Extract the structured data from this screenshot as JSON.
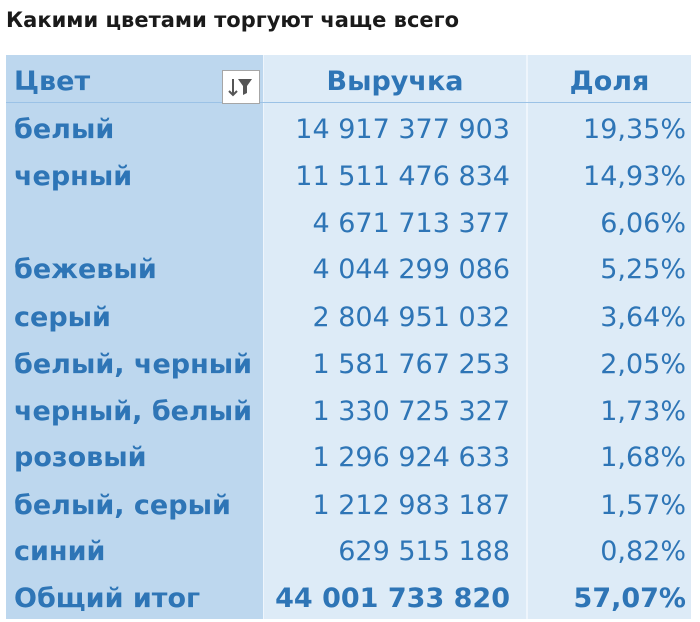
{
  "title": "Какими цветами торгуют чаще всего",
  "table": {
    "headers": {
      "color": "Цвет",
      "revenue": "Выручка",
      "share": "Доля"
    },
    "filter_icon": "sort-filter-icon",
    "rows": [
      {
        "color": "белый",
        "revenue": "14 917 377 903",
        "share": "19,35%"
      },
      {
        "color": "черный",
        "revenue": "11 511 476 834",
        "share": "14,93%"
      },
      {
        "color": "",
        "revenue": "4 671 713 377",
        "share": "6,06%"
      },
      {
        "color": "бежевый",
        "revenue": "4 044 299 086",
        "share": "5,25%"
      },
      {
        "color": "серый",
        "revenue": "2 804 951 032",
        "share": "3,64%"
      },
      {
        "color": "белый, черный",
        "revenue": "1 581 767 253",
        "share": "2,05%"
      },
      {
        "color": "черный, белый",
        "revenue": "1 330 725 327",
        "share": "1,73%"
      },
      {
        "color": "розовый",
        "revenue": "1 296 924 633",
        "share": "1,68%"
      },
      {
        "color": "белый, серый",
        "revenue": "1 212 983 187",
        "share": "1,57%"
      },
      {
        "color": "синий",
        "revenue": "629 515 188",
        "share": "0,82%"
      }
    ],
    "total": {
      "color": "Общий итог",
      "revenue": "44 001 733 820",
      "share": "57,07%"
    }
  },
  "colors": {
    "text": "#2e75b6",
    "label_column": "#bdd7ee",
    "value_columns": "#ddebf7"
  }
}
